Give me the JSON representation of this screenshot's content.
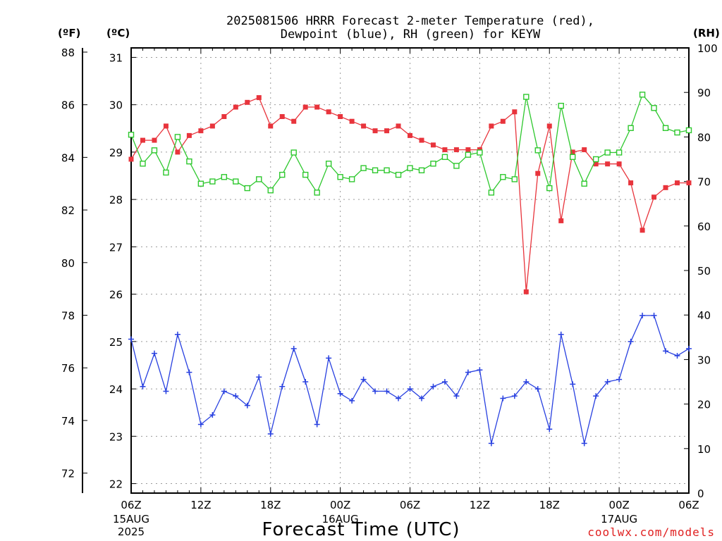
{
  "chart_data": {
    "type": "line",
    "title_line1": "2025081506 HRRR Forecast 2-meter Temperature (red),",
    "title_line2": "Dewpoint (blue), RH (green) for KEYW",
    "xlabel": "Forecast Time (UTC)",
    "credit": "coolwx.com/models",
    "unit_f": "(ºF)",
    "unit_c": "(ºC)",
    "unit_rh": "(RH)",
    "grid": true,
    "x_hours_range": [
      0,
      48
    ],
    "c_range": [
      21.8,
      31.2
    ],
    "f_range": [
      71.24,
      88.16
    ],
    "rh_range": [
      0,
      100
    ],
    "c_ticks": [
      "22",
      "23",
      "24",
      "25",
      "26",
      "27",
      "28",
      "29",
      "30",
      "31"
    ],
    "f_ticks": [
      "72",
      "74",
      "76",
      "78",
      "80",
      "82",
      "84",
      "86",
      "88"
    ],
    "rh_ticks": [
      "0",
      "10",
      "20",
      "30",
      "40",
      "50",
      "60",
      "70",
      "80",
      "90",
      "100"
    ],
    "x_ticks": [
      {
        "label": "06Z",
        "date": "15AUG",
        "year": "2025"
      },
      {
        "label": "12Z",
        "date": "",
        "year": ""
      },
      {
        "label": "18Z",
        "date": "",
        "year": ""
      },
      {
        "label": "00Z",
        "date": "16AUG",
        "year": ""
      },
      {
        "label": "06Z",
        "date": "",
        "year": ""
      },
      {
        "label": "12Z",
        "date": "",
        "year": ""
      },
      {
        "label": "18Z",
        "date": "",
        "year": ""
      },
      {
        "label": "00Z",
        "date": "17AUG",
        "year": ""
      },
      {
        "label": "06Z",
        "date": "",
        "year": ""
      }
    ],
    "series": [
      {
        "color": "#e8343c",
        "axis": "celsius",
        "marker": "filled-square",
        "values": [
          28.85,
          29.25,
          29.25,
          29.55,
          29.0,
          29.35,
          29.45,
          29.55,
          29.75,
          29.95,
          30.05,
          30.15,
          29.55,
          29.75,
          29.65,
          29.95,
          29.95,
          29.85,
          29.75,
          29.65,
          29.55,
          29.45,
          29.45,
          29.55,
          29.35,
          29.25,
          29.15,
          29.05,
          29.05,
          29.05,
          29.05,
          29.55,
          29.65,
          29.85,
          26.05,
          28.55,
          29.55,
          27.55,
          29.0,
          29.05,
          28.75,
          28.75,
          28.75,
          28.35,
          27.35,
          28.05,
          28.25,
          28.35,
          28.35
        ]
      },
      {
        "color": "#2840e0",
        "axis": "celsius",
        "marker": "plus",
        "values": [
          25.05,
          24.05,
          24.75,
          23.95,
          25.15,
          24.35,
          23.25,
          23.45,
          23.95,
          23.85,
          23.65,
          24.25,
          23.05,
          24.05,
          24.85,
          24.15,
          23.25,
          24.65,
          23.9,
          23.75,
          24.2,
          23.95,
          23.95,
          23.8,
          24.0,
          23.8,
          24.05,
          24.15,
          23.85,
          24.35,
          24.4,
          22.85,
          23.8,
          23.85,
          24.15,
          24.0,
          23.15,
          25.15,
          24.1,
          22.85,
          23.85,
          24.15,
          24.2,
          25.0,
          25.55,
          25.55,
          24.8,
          24.7,
          24.85
        ]
      },
      {
        "color": "#2ec82e",
        "axis": "rh",
        "marker": "open-square",
        "values": [
          80.5,
          74.0,
          77.0,
          72.0,
          80.0,
          74.5,
          69.5,
          70.0,
          71.0,
          70.0,
          68.5,
          70.5,
          68.0,
          71.5,
          76.5,
          71.5,
          67.5,
          74.0,
          71.0,
          70.5,
          73.0,
          72.5,
          72.5,
          71.5,
          73.0,
          72.5,
          74.0,
          75.5,
          73.5,
          76.0,
          76.5,
          67.5,
          71.0,
          70.5,
          89.0,
          77.0,
          68.5,
          87.0,
          75.5,
          69.5,
          75.0,
          76.5,
          76.5,
          82.0,
          89.5,
          86.5,
          82.0,
          81.0,
          81.5
        ]
      }
    ]
  }
}
